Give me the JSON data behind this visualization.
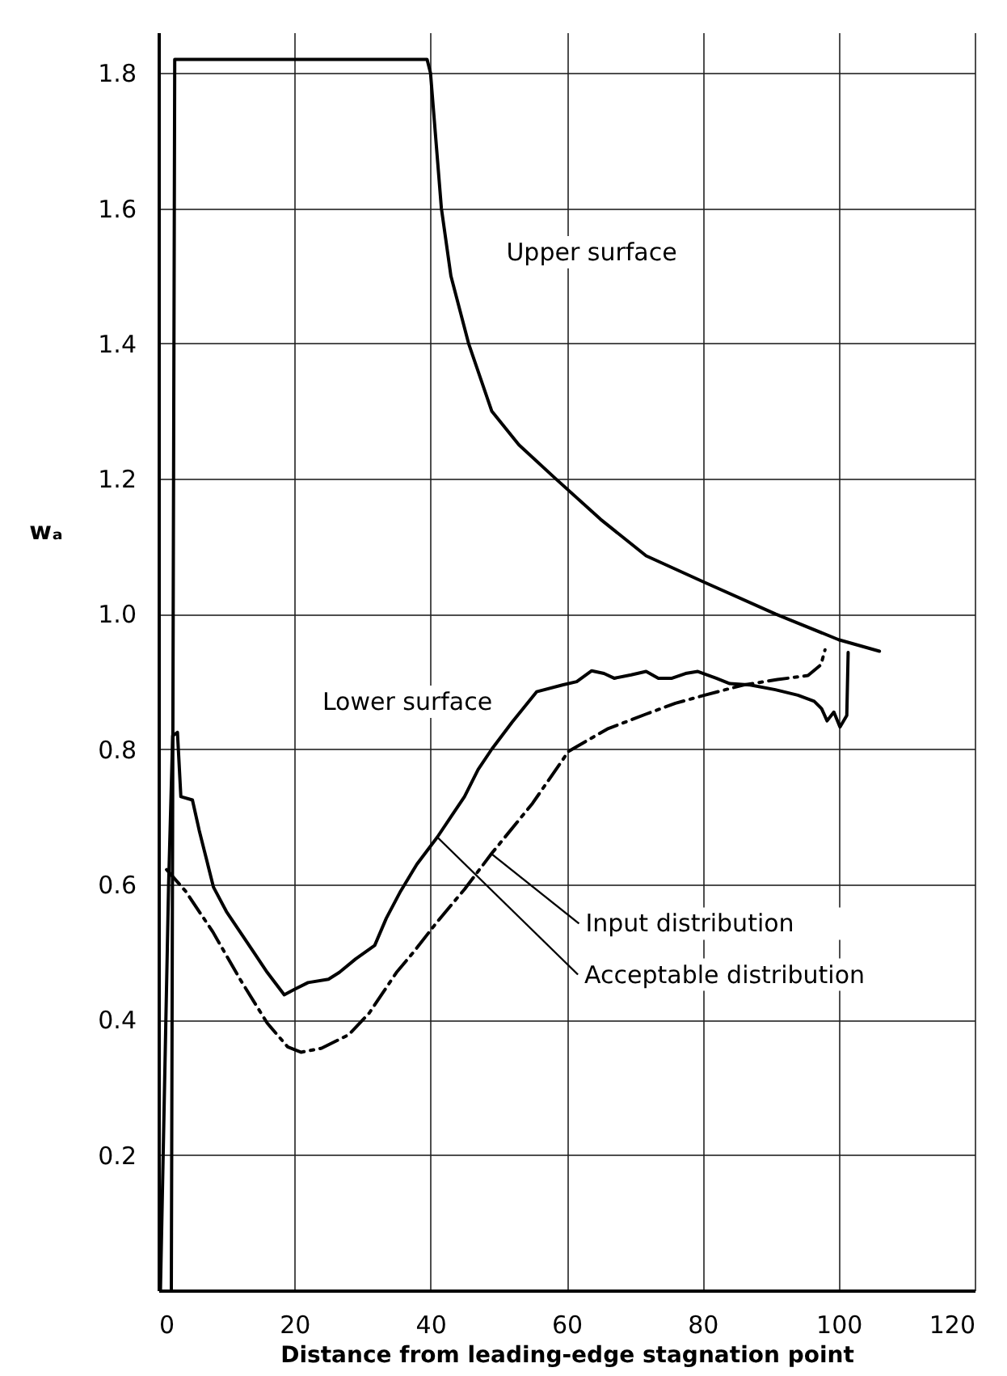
{
  "chart_data": {
    "type": "line",
    "xlabel": "Distance from leading-edge stagnation point",
    "ylabel": "wₐ",
    "xlim": [
      0,
      120
    ],
    "ylim": [
      0,
      1.86
    ],
    "xticks": [
      0,
      20,
      40,
      60,
      80,
      100,
      120
    ],
    "yticks": [
      0.2,
      0.4,
      0.6,
      0.8,
      {
        "value": 1,
        "label": "1.0"
      },
      1.2,
      1.4,
      1.6,
      1.8
    ],
    "grid": true,
    "series": [
      {
        "color": "#000000",
        "line_style": "solid",
        "x": [
          1.9,
          2.4,
          10,
          20,
          30,
          39.5,
          40,
          41.6,
          43,
          45.6,
          49,
          53,
          58.4,
          65,
          71.7,
          80,
          90.7,
          100,
          106
        ],
        "values": [
          0,
          1.82,
          1.82,
          1.82,
          1.82,
          1.82,
          1.8,
          1.6,
          1.5,
          1.4,
          1.3,
          1.25,
          1.2,
          1.14,
          1.086,
          1.048,
          1.0,
          0.962,
          0.945
        ]
      },
      {
        "color": "#000000",
        "line_style": "solid",
        "x": [
          0.3,
          1.5,
          2.1,
          2.8,
          3.3,
          5,
          6,
          7,
          8.1,
          10,
          12,
          14,
          16,
          18.5,
          20,
          22,
          25,
          26.6,
          29,
          31.8,
          33.5,
          35.6,
          38,
          41,
          43,
          45,
          47,
          49,
          52,
          55.6,
          59.4,
          61.5,
          63.7,
          65.5,
          67,
          69.5,
          71.7,
          73.5,
          75.5,
          77.5,
          79.3,
          82,
          84,
          87,
          90.7,
          94,
          96.4,
          97.5,
          98.3,
          99.3,
          100.2,
          101.2,
          101.4
        ],
        "values": [
          0,
          0.6,
          0.82,
          0.825,
          0.73,
          0.725,
          0.68,
          0.64,
          0.596,
          0.56,
          0.53,
          0.5,
          0.47,
          0.437,
          0.445,
          0.455,
          0.46,
          0.47,
          0.49,
          0.51,
          0.55,
          0.59,
          0.63,
          0.67,
          0.7,
          0.73,
          0.77,
          0.8,
          0.84,
          0.885,
          0.895,
          0.9,
          0.916,
          0.912,
          0.905,
          0.91,
          0.915,
          0.905,
          0.905,
          0.912,
          0.915,
          0.905,
          0.897,
          0.895,
          0.888,
          0.88,
          0.871,
          0.86,
          0.842,
          0.855,
          0.833,
          0.85,
          0.943
        ]
      },
      {
        "color": "#000000",
        "line_style": "dashed",
        "x": [
          1.2,
          4,
          8,
          12,
          16,
          19,
          21,
          24,
          28,
          31,
          33,
          35,
          37.5,
          41,
          45,
          49,
          55,
          60.3,
          66,
          71.7,
          76,
          80.3,
          86,
          91,
          95.5,
          97.4,
          98
        ],
        "values": [
          0.622,
          0.59,
          0.53,
          0.46,
          0.395,
          0.36,
          0.352,
          0.358,
          0.378,
          0.41,
          0.44,
          0.47,
          0.5,
          0.545,
          0.593,
          0.646,
          0.72,
          0.797,
          0.83,
          0.852,
          0.868,
          0.88,
          0.895,
          0.903,
          0.909,
          0.925,
          0.947
        ]
      }
    ],
    "annotations": [
      "Upper surface",
      "Lower surface",
      {
        "text": "Input distribution",
        "x": 49,
        "y": 0.645
      },
      {
        "text": "Acceptable distribution",
        "x": 41,
        "y": 0.67
      }
    ]
  }
}
